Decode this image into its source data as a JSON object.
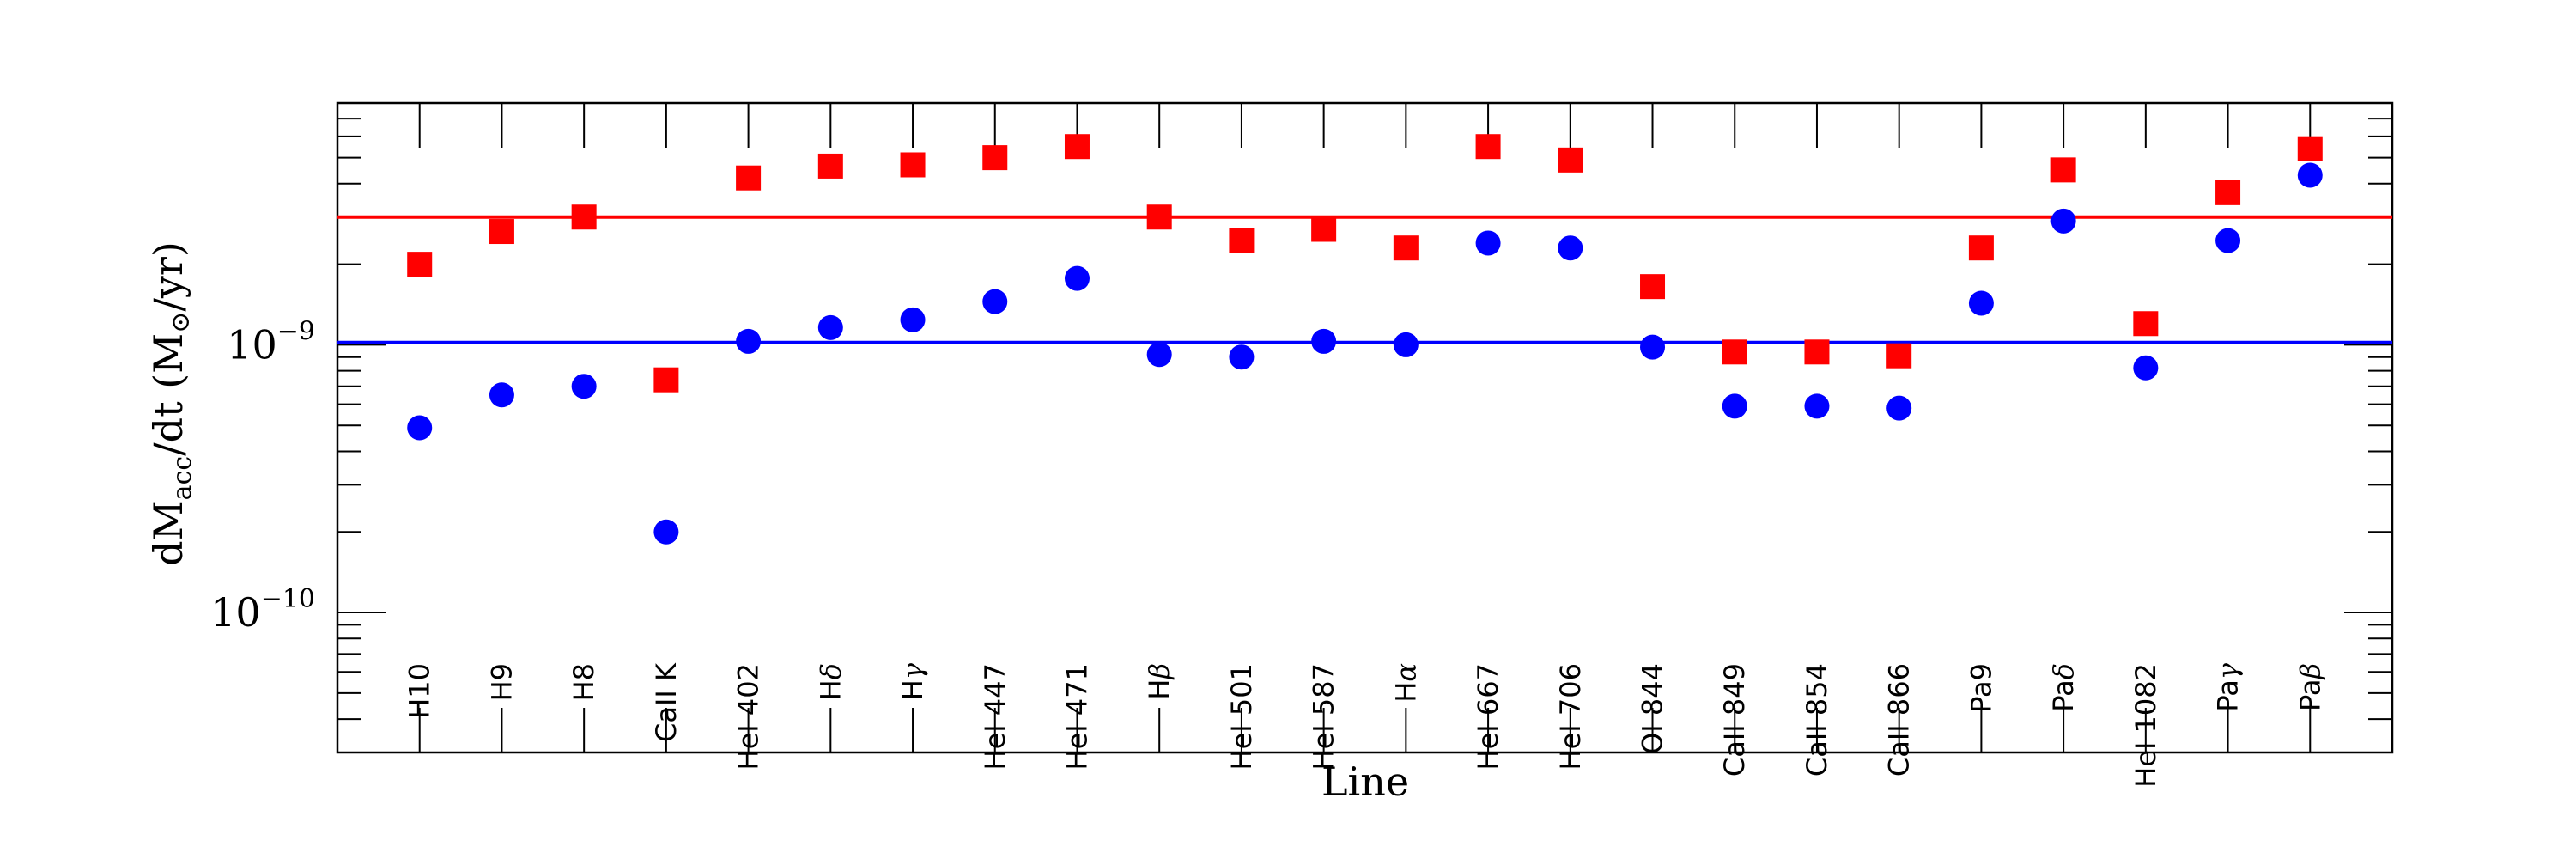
{
  "chart_data": {
    "type": "scatter",
    "xlabel": "Line",
    "ylabel": {
      "main": "dM",
      "sub": "acc",
      "rest": "/dt (M",
      "sun": "⊙",
      "unit": "/yr)"
    },
    "yscale": "log",
    "ylim": [
      3e-11,
      8e-09
    ],
    "yticks": [
      {
        "value": 1e-10,
        "base": "10",
        "exp": "−10"
      },
      {
        "value": 1e-09,
        "base": "10",
        "exp": "−9"
      }
    ],
    "categories": [
      {
        "base": "H10",
        "greek": ""
      },
      {
        "base": "H9",
        "greek": ""
      },
      {
        "base": "H8",
        "greek": ""
      },
      {
        "base": "CaII K",
        "greek": ""
      },
      {
        "base": "HeI 402",
        "greek": ""
      },
      {
        "base": "H",
        "greek": "δ"
      },
      {
        "base": "H",
        "greek": "γ"
      },
      {
        "base": "HeI 447",
        "greek": ""
      },
      {
        "base": "HeI 471",
        "greek": ""
      },
      {
        "base": "H",
        "greek": "β"
      },
      {
        "base": "HeI 501",
        "greek": ""
      },
      {
        "base": "HeI 587",
        "greek": ""
      },
      {
        "base": "H",
        "greek": "α"
      },
      {
        "base": "HeI 667",
        "greek": ""
      },
      {
        "base": "HeI 706",
        "greek": ""
      },
      {
        "base": "OI 844",
        "greek": ""
      },
      {
        "base": "CaII 849",
        "greek": ""
      },
      {
        "base": "CaII 854",
        "greek": ""
      },
      {
        "base": "CaII 866",
        "greek": ""
      },
      {
        "base": "Pa9",
        "greek": ""
      },
      {
        "base": "Pa",
        "greek": "δ"
      },
      {
        "base": "HeI 1082",
        "greek": ""
      },
      {
        "base": "Pa",
        "greek": "γ"
      },
      {
        "base": "Pa",
        "greek": "β"
      }
    ],
    "series": [
      {
        "marker": "square",
        "color": "#ff0000",
        "values": [
          2e-09,
          2.65e-09,
          3e-09,
          7.4e-10,
          4.2e-09,
          4.65e-09,
          4.7e-09,
          5e-09,
          5.5e-09,
          3e-09,
          2.45e-09,
          2.7e-09,
          2.3e-09,
          5.5e-09,
          4.9e-09,
          1.65e-09,
          9.4e-10,
          9.4e-10,
          9.1e-10,
          2.3e-09,
          4.5e-09,
          1.2e-09,
          3.7e-09,
          5.4e-09
        ]
      },
      {
        "marker": "circle",
        "color": "#0000ff",
        "values": [
          4.9e-10,
          6.5e-10,
          7e-10,
          2e-10,
          1.03e-09,
          1.16e-09,
          1.24e-09,
          1.45e-09,
          1.77e-09,
          9.2e-10,
          9e-10,
          1.03e-09,
          1e-09,
          2.4e-09,
          2.3e-09,
          9.8e-10,
          5.9e-10,
          5.9e-10,
          5.8e-10,
          1.43e-09,
          2.9e-09,
          8.2e-10,
          2.45e-09,
          4.3e-09
        ]
      }
    ],
    "hlines": [
      {
        "value": 3e-09,
        "color": "#ff0000"
      },
      {
        "value": 1.02e-09,
        "color": "#0000ff"
      }
    ],
    "grid": false
  }
}
